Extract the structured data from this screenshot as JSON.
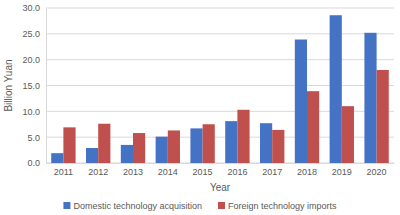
{
  "chart_data": {
    "type": "bar",
    "x_label": "Year",
    "y_label": "Billion Yuan",
    "categories": [
      "2011",
      "2012",
      "2013",
      "2014",
      "2015",
      "2016",
      "2017",
      "2018",
      "2019",
      "2020"
    ],
    "series": [
      {
        "name": "Domestic technology acquisition",
        "color": "#4472c4",
        "values": [
          1.9,
          2.9,
          3.5,
          5.1,
          6.7,
          8.1,
          7.7,
          23.9,
          28.6,
          25.2
        ]
      },
      {
        "name": "Foreign technology imports",
        "color": "#c0504d",
        "values": [
          6.9,
          7.6,
          5.8,
          6.3,
          7.5,
          10.3,
          6.4,
          13.9,
          11.0,
          18.0
        ]
      }
    ],
    "ylim": [
      0,
      30
    ],
    "yticks": [
      {
        "value": 0,
        "label": "0.0"
      },
      {
        "value": 5,
        "label": "5.0"
      },
      {
        "value": 10,
        "label": "10.0"
      },
      {
        "value": 15,
        "label": "15.0"
      },
      {
        "value": 20,
        "label": "20.0"
      },
      {
        "value": 25,
        "label": "25.0"
      },
      {
        "value": 30,
        "label": "30.0"
      }
    ],
    "grid": true,
    "legend": "bottom"
  }
}
